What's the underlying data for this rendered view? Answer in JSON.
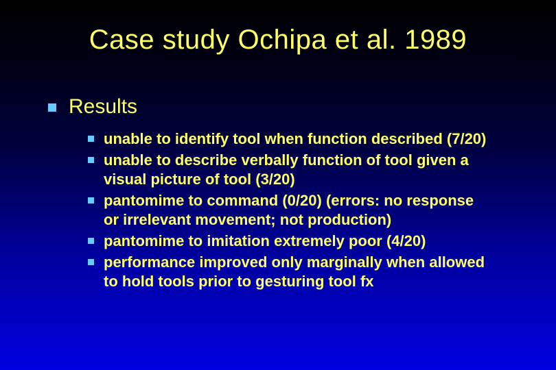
{
  "colors": {
    "bullet": "#66ccff",
    "text": "#ffff66",
    "bg_top": "#000000",
    "bg_bottom": "#0000e0"
  },
  "typography": {
    "title_fontsize": 40,
    "level1_fontsize": 30,
    "level2_fontsize": 22,
    "font_family": "Arial"
  },
  "slide": {
    "title": "Case study Ochipa et al. 1989",
    "level1": "Results",
    "level2": [
      "unable to identify tool when function described (7/20)",
      "unable to describe verbally function of tool given a visual picture of tool (3/20)",
      "pantomime to command (0/20) (errors: no response or irrelevant movement; not production)",
      "pantomime to imitation extremely poor (4/20)",
      "performance improved only marginally when allowed to hold tools prior to gesturing tool fx"
    ]
  }
}
